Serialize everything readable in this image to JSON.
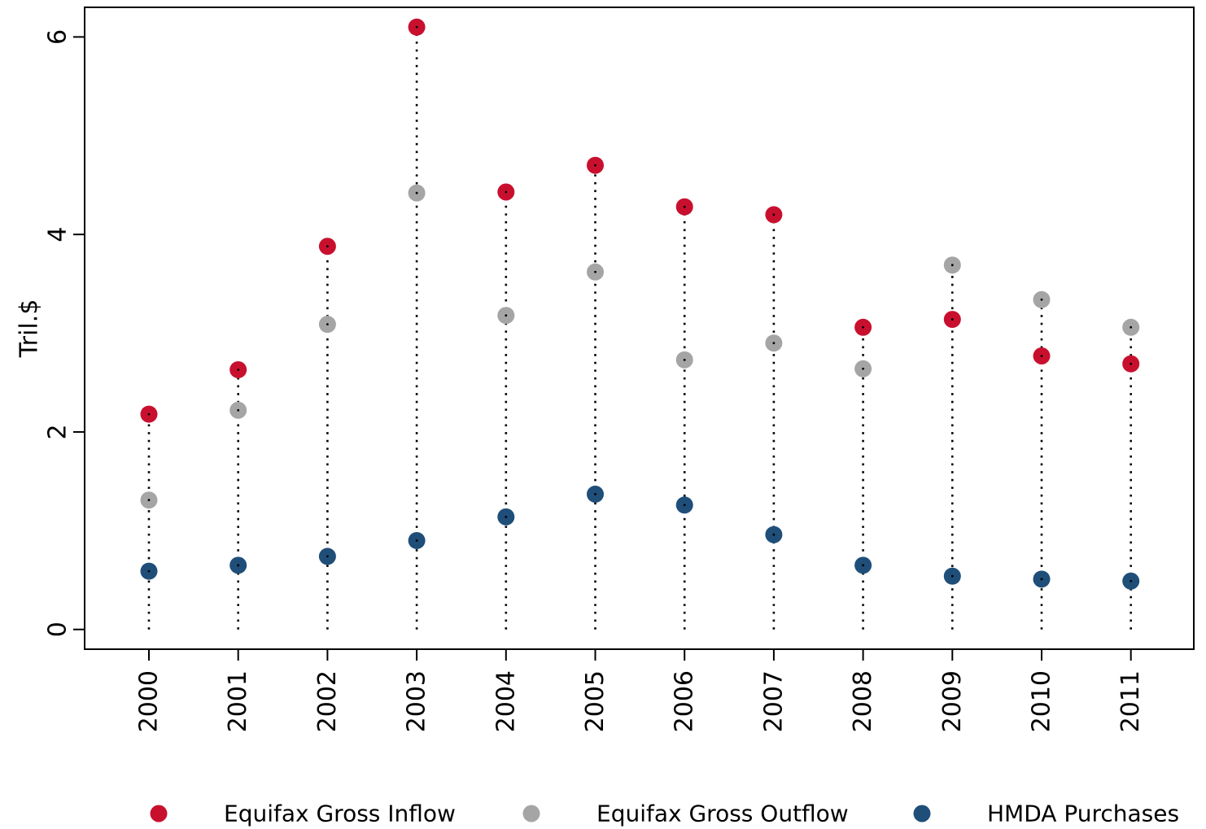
{
  "chart_data": {
    "type": "scatter",
    "ylabel": "Tril.$",
    "xlabel": "",
    "ylim": [
      -0.2,
      6.3
    ],
    "yticks": [
      0,
      2,
      4,
      6
    ],
    "grid": "dotted vertical drop lines at each year",
    "legend_position": "bottom",
    "categories": [
      "2000",
      "2001",
      "2002",
      "2003",
      "2004",
      "2005",
      "2006",
      "2007",
      "2008",
      "2009",
      "2010",
      "2011"
    ],
    "series": [
      {
        "name": "Equifax Gross Inflow",
        "color": "#c8102e",
        "values": [
          2.18,
          2.63,
          3.88,
          6.1,
          4.43,
          4.7,
          4.28,
          4.2,
          3.06,
          3.14,
          2.77,
          2.69
        ]
      },
      {
        "name": "Equifax Gross Outflow",
        "color": "#a5a5a5",
        "values": [
          1.31,
          2.22,
          3.09,
          4.42,
          3.18,
          3.62,
          2.73,
          2.9,
          2.64,
          3.69,
          3.34,
          3.06
        ]
      },
      {
        "name": "HMDA Purchases",
        "color": "#1f4e79",
        "values": [
          0.59,
          0.65,
          0.74,
          0.9,
          1.14,
          1.37,
          1.26,
          0.96,
          0.65,
          0.54,
          0.51,
          0.49
        ]
      }
    ]
  }
}
